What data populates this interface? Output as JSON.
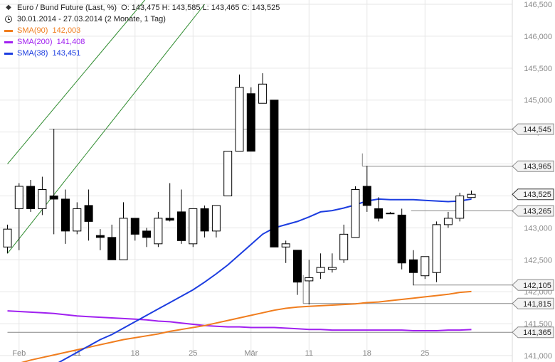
{
  "legend": {
    "instrument": "Euro / Bund Future (Last, %)",
    "ohlc": "O: 143,475  H: 143,585  L: 143,465  C: 143,525",
    "range": "30.01.2014 - 27.03.2014 (2 Monate, 1 Tag)",
    "sma90": {
      "label": "SMA(90)",
      "value": "142,003",
      "color": "#f07d1e"
    },
    "sma200": {
      "label": "SMA(200)",
      "value": "141,408",
      "color": "#a020f0"
    },
    "sma38": {
      "label": "SMA(38)",
      "value": "143,451",
      "color": "#1c3de0"
    }
  },
  "chart_data": {
    "type": "candlestick",
    "ylim": [
      141.0,
      146.5
    ],
    "yticks": [
      "146,500",
      "146,000",
      "145,500",
      "145,000",
      "144,500",
      "144,000",
      "143,500",
      "143,000",
      "142,500",
      "142,000",
      "141,500",
      "141,000"
    ],
    "xticks": [
      "Feb",
      "11",
      "18",
      "25",
      "Mär",
      "11",
      "18",
      "25"
    ],
    "candles": [
      {
        "date": "30.01.",
        "o": 142.7,
        "h": 143.05,
        "l": 142.6,
        "c": 142.98
      },
      {
        "date": "31.01.",
        "o": 143.3,
        "h": 143.7,
        "l": 142.65,
        "c": 143.65
      },
      {
        "date": "03.02.",
        "o": 143.65,
        "h": 143.75,
        "l": 143.25,
        "c": 143.3
      },
      {
        "date": "04.02.",
        "o": 143.3,
        "h": 143.8,
        "l": 143.2,
        "c": 143.6
      },
      {
        "date": "05.02.",
        "o": 143.5,
        "h": 144.55,
        "l": 142.9,
        "c": 143.45
      },
      {
        "date": "06.02.",
        "o": 143.45,
        "h": 143.6,
        "l": 142.75,
        "c": 142.95
      },
      {
        "date": "07.02.",
        "o": 142.95,
        "h": 143.4,
        "l": 142.9,
        "c": 143.3
      },
      {
        "date": "10.02.",
        "o": 143.35,
        "h": 143.6,
        "l": 142.8,
        "c": 143.1
      },
      {
        "date": "11.02.",
        "o": 142.88,
        "h": 142.98,
        "l": 142.65,
        "c": 142.85
      },
      {
        "date": "12.02.",
        "o": 142.85,
        "h": 143.05,
        "l": 142.5,
        "c": 142.5
      },
      {
        "date": "13.02.",
        "o": 142.5,
        "h": 143.4,
        "l": 142.5,
        "c": 143.15
      },
      {
        "date": "14.02.",
        "o": 143.15,
        "h": 143.15,
        "l": 142.8,
        "c": 142.9
      },
      {
        "date": "17.02.",
        "o": 142.95,
        "h": 143.0,
        "l": 142.7,
        "c": 142.85
      },
      {
        "date": "18.02.",
        "o": 142.75,
        "h": 143.25,
        "l": 142.7,
        "c": 143.15
      },
      {
        "date": "19.02.",
        "o": 143.15,
        "h": 143.7,
        "l": 143.1,
        "c": 143.12
      },
      {
        "date": "20.02.",
        "o": 143.25,
        "h": 143.6,
        "l": 142.75,
        "c": 142.8
      },
      {
        "date": "21.02.",
        "o": 142.75,
        "h": 143.3,
        "l": 142.7,
        "c": 143.3
      },
      {
        "date": "24.02.",
        "o": 143.3,
        "h": 143.35,
        "l": 142.85,
        "c": 142.95
      },
      {
        "date": "25.02.",
        "o": 142.95,
        "h": 143.35,
        "l": 142.85,
        "c": 143.35
      },
      {
        "date": "26.02.",
        "o": 143.5,
        "h": 144.2,
        "l": 143.5,
        "c": 144.2
      },
      {
        "date": "27.02.",
        "o": 144.2,
        "h": 145.4,
        "l": 144.2,
        "c": 145.2
      },
      {
        "date": "28.02.",
        "o": 145.1,
        "h": 145.2,
        "l": 144.2,
        "c": 144.2
      },
      {
        "date": "03.03.",
        "o": 144.95,
        "h": 145.42,
        "l": 144.95,
        "c": 145.25
      },
      {
        "date": "04.03.",
        "o": 145.0,
        "h": 145.0,
        "l": 142.7,
        "c": 142.7
      },
      {
        "date": "05.03.",
        "o": 142.7,
        "h": 142.8,
        "l": 142.45,
        "c": 142.75
      },
      {
        "date": "06.03.",
        "o": 142.65,
        "h": 142.65,
        "l": 141.95,
        "c": 142.15
      },
      {
        "date": "07.03.",
        "o": 142.17,
        "h": 142.5,
        "l": 141.8,
        "c": 142.22
      },
      {
        "date": "10.03.",
        "o": 142.3,
        "h": 142.6,
        "l": 142.2,
        "c": 142.38
      },
      {
        "date": "11.03.",
        "o": 142.35,
        "h": 142.6,
        "l": 142.3,
        "c": 142.38
      },
      {
        "date": "12.03.",
        "o": 142.5,
        "h": 143.05,
        "l": 142.45,
        "c": 142.9
      },
      {
        "date": "13.03.",
        "o": 142.85,
        "h": 143.65,
        "l": 142.85,
        "c": 143.6
      },
      {
        "date": "14.03.",
        "o": 143.65,
        "h": 143.97,
        "l": 143.25,
        "c": 143.35
      },
      {
        "date": "17.03.",
        "o": 143.3,
        "h": 143.48,
        "l": 143.1,
        "c": 143.15
      },
      {
        "date": "18.03.",
        "o": 143.23,
        "h": 143.25,
        "l": 143.23,
        "c": 143.23
      },
      {
        "date": "19.03.",
        "o": 143.2,
        "h": 143.3,
        "l": 142.35,
        "c": 142.45
      },
      {
        "date": "20.03.",
        "o": 142.5,
        "h": 142.65,
        "l": 142.1,
        "c": 142.3
      },
      {
        "date": "21.03.",
        "o": 142.25,
        "h": 142.55,
        "l": 142.2,
        "c": 142.55
      },
      {
        "date": "24.03.",
        "o": 142.3,
        "h": 143.1,
        "l": 142.15,
        "c": 143.05
      },
      {
        "date": "25.03.",
        "o": 143.05,
        "h": 143.25,
        "l": 143.0,
        "c": 143.15
      },
      {
        "date": "26.03.",
        "o": 143.15,
        "h": 143.55,
        "l": 143.1,
        "c": 143.5
      },
      {
        "date": "27.03.",
        "o": 143.475,
        "h": 143.585,
        "l": 143.465,
        "c": 143.525
      }
    ],
    "sma90": [
      140.85,
      140.88,
      140.93,
      140.97,
      141.01,
      141.05,
      141.09,
      141.13,
      141.17,
      141.21,
      141.25,
      141.28,
      141.31,
      141.34,
      141.38,
      141.41,
      141.44,
      141.47,
      141.51,
      141.55,
      141.59,
      141.63,
      141.67,
      141.71,
      141.74,
      141.76,
      141.77,
      141.78,
      141.79,
      141.8,
      141.81,
      141.83,
      141.84,
      141.86,
      141.88,
      141.9,
      141.92,
      141.94,
      141.96,
      141.99,
      142.003
    ],
    "sma200": [
      141.7,
      141.69,
      141.68,
      141.67,
      141.66,
      141.64,
      141.62,
      141.61,
      141.6,
      141.59,
      141.58,
      141.57,
      141.56,
      141.54,
      141.53,
      141.51,
      141.49,
      141.47,
      141.46,
      141.45,
      141.45,
      141.44,
      141.44,
      141.44,
      141.43,
      141.42,
      141.41,
      141.41,
      141.4,
      141.4,
      141.4,
      141.4,
      141.4,
      141.4,
      141.4,
      141.39,
      141.39,
      141.39,
      141.4,
      141.4,
      141.408
    ],
    "sma38": [
      null,
      null,
      null,
      140.75,
      140.85,
      140.95,
      141.05,
      141.15,
      141.25,
      141.33,
      141.43,
      141.53,
      141.63,
      141.73,
      141.83,
      141.93,
      142.03,
      142.15,
      142.28,
      142.42,
      142.58,
      142.74,
      142.9,
      143.0,
      143.05,
      143.1,
      143.17,
      143.25,
      143.27,
      143.31,
      143.36,
      143.42,
      143.45,
      143.44,
      143.44,
      143.44,
      143.43,
      143.42,
      143.41,
      143.42,
      143.451
    ],
    "horizontal_levels": [
      {
        "value": 144.545,
        "label": "144,545"
      },
      {
        "value": 143.965,
        "label": "143,965"
      },
      {
        "value": 143.525,
        "label": "143,525",
        "current": true
      },
      {
        "value": 143.265,
        "label": "143,265"
      },
      {
        "value": 142.105,
        "label": "142,105"
      },
      {
        "value": 141.815,
        "label": "141,815"
      },
      {
        "value": 141.365,
        "label": "141,365"
      }
    ],
    "trend_channel": [
      {
        "from": [
          0,
          142.6
        ],
        "to": [
          17,
          146.5
        ]
      },
      {
        "from": [
          0,
          144.0
        ],
        "to": [
          18,
          147.9
        ]
      }
    ]
  }
}
